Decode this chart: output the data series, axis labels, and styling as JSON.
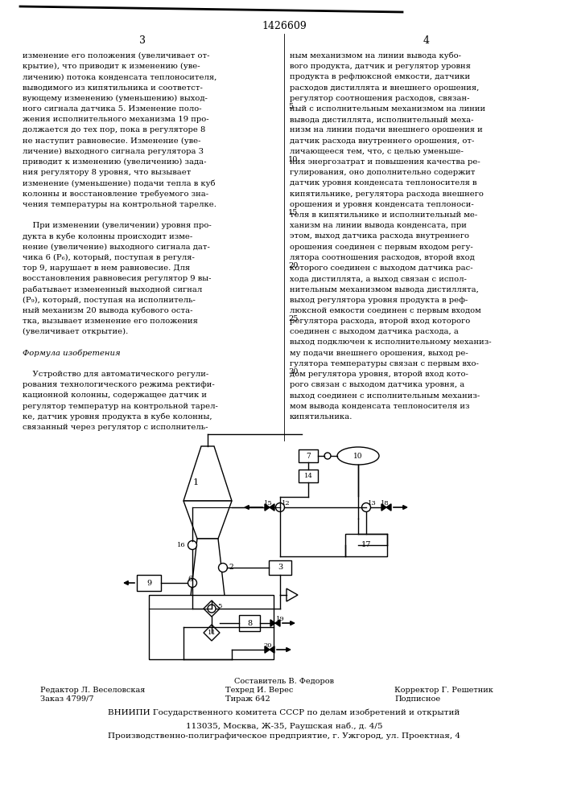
{
  "page_title": "1426609",
  "col_left_num": "3",
  "col_right_num": "4",
  "left_text": [
    "изменение его положения (увеличивает от-",
    "крытие), что приводит к изменению (уве-",
    "личению) потока конденсата теплоносителя,",
    "выводимого из кипятильника и соответст-",
    "вующему изменению (уменьшению) выход-",
    "ного сигнала датчика 5. Изменение поло-",
    "жения исполнительного механизма 19 про-",
    "должается до тех пор, пока в регуляторе 8",
    "не наступит равновесие. Изменение (уве-",
    "личение) выходного сигнала регулятора 3",
    "приводит к изменению (увеличению) зада-",
    "ния регулятору 8 уровня, что вызывает",
    "изменение (уменьшение) подачи тепла в куб",
    "колонны и восстановление требуемого зна-",
    "чения температуры на контрольной тарелке.",
    "",
    "    При изменении (увеличении) уровня про-",
    "дукта в кубе колонны происходит изме-",
    "нение (увеличение) выходного сигнала дат-",
    "чика 6 (Р₆), который, поступая в регуля-",
    "тор 9, нарушает в нем равновесие. Для",
    "восстановления равновесия регулятор 9 вы-",
    "рабатывает измененный выходной сигнал",
    "(Р₉), который, поступая на исполнитель-",
    "ный механизм 20 вывода кубового оста-",
    "тка, вызывает изменение его положения",
    "(увеличивает открытие).",
    "",
    "Формула изобретения",
    "",
    "    Устройство для автоматического регули-",
    "рования технологического режима ректифи-",
    "кационной колонны, содержащее датчик и",
    "регулятор температур на контрольной тарел-",
    "ке, датчик уровня продукта в кубе колонны,",
    "связанный через регулятор с исполнитель-"
  ],
  "right_text": [
    "ным механизмом на линии вывода кубо-",
    "вого продукта, датчик и регулятор уровня",
    "продукта в рефлюксной емкости, датчики",
    "расходов дистиллята и внешнего орошения,",
    "регулятор соотношения расходов, связан-",
    "ный с исполнительным механизмом на линии",
    "вывода дистиллята, исполнительный меха-",
    "низм на линии подачи внешнего орошения и",
    "датчик расхода внутреннего орошения, от-",
    "личающееся тем, что, с целью уменьше-",
    "ния энергозатрат и повышения качества ре-",
    "гулирования, оно дополнительно содержит",
    "датчик уровня конденсата теплоносителя в",
    "кипятильнике, регулятора расхода внешнего",
    "орошения и уровня конденсата теплоноси-",
    "теля в кипятильнике и исполнительный ме-",
    "ханизм на линии вывода конденсата, при",
    "этом, выход датчика расхода внутреннего",
    "орошения соединен с первым входом регу-",
    "лятора соотношения расходов, второй вход",
    "которого соединен с выходом датчика рас-",
    "хода дистиллята, а выход связан с испол-",
    "нительным механизмом вывода дистиллята,",
    "выход регулятора уровня продукта в реф-",
    "люксной емкости соединен с первым входом",
    "регулятора расхода, второй вход которого",
    "соединен с выходом датчика расхода, а",
    "выход подключен к исполнительному механиз-",
    "му подачи внешнего орошения, выход ре-",
    "гулятора температуры связан с первым вхо-",
    "дом регулятора уровня, второй вход кото-",
    "рого связан с выходом датчика уровня, а",
    "выход соединен с исполнительным механиз-",
    "мом вывода конденсата теплоносителя из",
    "кипятильника."
  ],
  "footer_line1": "Составитель В. Федоров",
  "footer_line2a": "Редактор Л. Веселовская",
  "footer_line2b": "Техред И. Верес",
  "footer_line2c": "Корректор Г. Решетник",
  "footer_line3a": "Заказ 4799/7",
  "footer_line3b": "Тираж 642",
  "footer_line3c": "Подписное",
  "footer_line4": "ВНИИПИ Государственного комитета СССР по делам изобретений и открытий",
  "footer_line5": "113035, Москва, Ж-35, Раушская наб., д. 4/5",
  "footer_line6": "Производственно-полиграфическое предприятие, г. Ужгород, ул. Проектная, 4",
  "bg_color": "#ffffff",
  "text_color": "#000000",
  "line_color": "#000000"
}
